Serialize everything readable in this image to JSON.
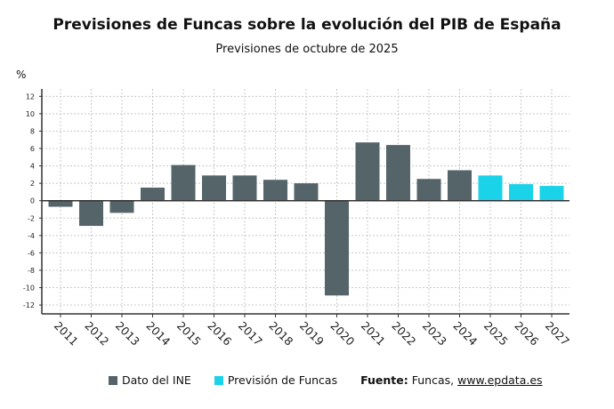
{
  "chart_data": {
    "type": "bar",
    "title": "Previsiones de Funcas sobre la evolución del PIB de España",
    "subtitle": "Previsiones de octubre de 2025",
    "ylabel": "%",
    "xlabel": "",
    "ylim": [
      -12,
      12
    ],
    "yticks": [
      12,
      10,
      8,
      6,
      4,
      2,
      0,
      -2,
      -4,
      -6,
      -8,
      -10,
      -12
    ],
    "grid": true,
    "categories": [
      "2011",
      "2012",
      "2013",
      "2014",
      "2015",
      "2016",
      "2017",
      "2018",
      "2019",
      "2020",
      "2021",
      "2022",
      "2023",
      "2024",
      "2025",
      "2026",
      "2027"
    ],
    "values": [
      -0.7,
      -2.9,
      -1.4,
      1.5,
      4.1,
      2.9,
      2.9,
      2.4,
      2.0,
      -10.9,
      6.7,
      6.4,
      2.5,
      3.5,
      2.9,
      1.9,
      1.7
    ],
    "series_type": [
      "ine",
      "ine",
      "ine",
      "ine",
      "ine",
      "ine",
      "ine",
      "ine",
      "ine",
      "ine",
      "ine",
      "ine",
      "ine",
      "ine",
      "funcas",
      "funcas",
      "funcas"
    ],
    "legend": [
      {
        "key": "ine",
        "name": "Dato del INE",
        "color": "#546469"
      },
      {
        "key": "funcas",
        "name": "Previsión de Funcas",
        "color": "#1ad3e8"
      }
    ],
    "legend_position": "bottom"
  },
  "source": {
    "label": "Fuente:",
    "text": "Funcas, ",
    "link": "www.epdata.es"
  }
}
